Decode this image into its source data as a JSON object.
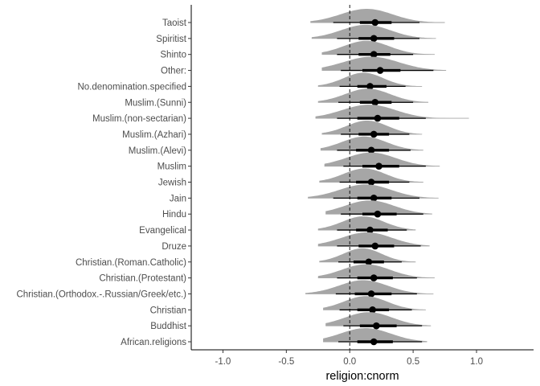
{
  "chart_data": {
    "type": "interval",
    "xlabel": "religion:cnorm",
    "ylabel": "",
    "xlim": [
      -1.25,
      1.45
    ],
    "xticks": [
      -1.0,
      -0.5,
      0.0,
      0.5,
      1.0
    ],
    "xtick_labels": [
      "-1.0",
      "-0.5",
      "0.0",
      "0.5",
      "1.0"
    ],
    "reference_line": 0,
    "grid": false,
    "colors": {
      "density": "#a6a6a6",
      "point": "#000000",
      "interval": "#000000",
      "axis": "#000000"
    },
    "categories": [
      "Taoist",
      "Spiritist",
      "Shinto",
      "Other:",
      "No.denomination.specified",
      "Muslim.(Sunni)",
      "Muslim.(non-sectarian)",
      "Muslim.(Azhari)",
      "Muslim.(Alevi)",
      "Muslim",
      "Jewish",
      "Jain",
      "Hindu",
      "Evangelical",
      "Druze",
      "Christian.(Roman.Catholic)",
      "Christian.(Protestant)",
      "Christian.(Orthodox.-.Russian/Greek/etc.)",
      "Christian",
      "Buddhist",
      "African.religions"
    ],
    "estimates": [
      {
        "label": "Taoist",
        "median": 0.2,
        "ci66": [
          0.08,
          0.33
        ],
        "ci95": [
          -0.13,
          0.55
        ],
        "range": [
          -0.31,
          0.75
        ]
      },
      {
        "label": "Spiritist",
        "median": 0.19,
        "ci66": [
          0.07,
          0.35
        ],
        "ci95": [
          -0.1,
          0.55
        ],
        "range": [
          -0.3,
          0.68
        ]
      },
      {
        "label": "Shinto",
        "median": 0.19,
        "ci66": [
          0.07,
          0.32
        ],
        "ci95": [
          -0.1,
          0.5
        ],
        "range": [
          -0.22,
          0.67
        ]
      },
      {
        "label": "Other:",
        "median": 0.24,
        "ci66": [
          0.1,
          0.4
        ],
        "ci95": [
          -0.07,
          0.66
        ],
        "range": [
          -0.22,
          0.76
        ]
      },
      {
        "label": "No.denomination.specified",
        "median": 0.16,
        "ci66": [
          0.06,
          0.29
        ],
        "ci95": [
          -0.08,
          0.44
        ],
        "range": [
          -0.25,
          0.57
        ]
      },
      {
        "label": "Muslim.(Sunni)",
        "median": 0.2,
        "ci66": [
          0.08,
          0.33
        ],
        "ci95": [
          -0.09,
          0.5
        ],
        "range": [
          -0.25,
          0.62
        ]
      },
      {
        "label": "Muslim.(non-sectarian)",
        "median": 0.22,
        "ci66": [
          0.06,
          0.39
        ],
        "ci95": [
          -0.1,
          0.6
        ],
        "range": [
          -0.27,
          0.94
        ]
      },
      {
        "label": "Muslim.(Azhari)",
        "median": 0.19,
        "ci66": [
          0.07,
          0.31
        ],
        "ci95": [
          -0.07,
          0.47
        ],
        "range": [
          -0.22,
          0.57
        ]
      },
      {
        "label": "Muslim.(Alevi)",
        "median": 0.17,
        "ci66": [
          0.05,
          0.31
        ],
        "ci95": [
          -0.1,
          0.48
        ],
        "range": [
          -0.23,
          0.58
        ]
      },
      {
        "label": "Muslim",
        "median": 0.23,
        "ci66": [
          0.1,
          0.39
        ],
        "ci95": [
          -0.05,
          0.6
        ],
        "range": [
          -0.2,
          0.71
        ]
      },
      {
        "label": "Jewish",
        "median": 0.17,
        "ci66": [
          0.05,
          0.31
        ],
        "ci95": [
          -0.08,
          0.47
        ],
        "range": [
          -0.24,
          0.58
        ]
      },
      {
        "label": "Jain",
        "median": 0.19,
        "ci66": [
          0.06,
          0.33
        ],
        "ci95": [
          -0.13,
          0.55
        ],
        "range": [
          -0.33,
          0.7
        ]
      },
      {
        "label": "Hindu",
        "median": 0.22,
        "ci66": [
          0.1,
          0.37
        ],
        "ci95": [
          -0.07,
          0.58
        ],
        "range": [
          -0.19,
          0.65
        ]
      },
      {
        "label": "Evangelical",
        "median": 0.16,
        "ci66": [
          0.05,
          0.3
        ],
        "ci95": [
          -0.1,
          0.45
        ],
        "range": [
          -0.25,
          0.52
        ]
      },
      {
        "label": "Druze",
        "median": 0.2,
        "ci66": [
          0.07,
          0.35
        ],
        "ci95": [
          -0.1,
          0.56
        ],
        "range": [
          -0.25,
          0.63
        ]
      },
      {
        "label": "Christian.(Roman.Catholic)",
        "median": 0.15,
        "ci66": [
          0.03,
          0.27
        ],
        "ci95": [
          -0.09,
          0.41
        ],
        "range": [
          -0.24,
          0.52
        ]
      },
      {
        "label": "Christian.(Protestant)",
        "median": 0.19,
        "ci66": [
          0.06,
          0.34
        ],
        "ci95": [
          -0.1,
          0.53
        ],
        "range": [
          -0.25,
          0.67
        ]
      },
      {
        "label": "Christian.(Orthodox.-.Russian/Greek/etc.)",
        "median": 0.17,
        "ci66": [
          0.04,
          0.33
        ],
        "ci95": [
          -0.11,
          0.53
        ],
        "range": [
          -0.35,
          0.66
        ]
      },
      {
        "label": "Christian",
        "median": 0.18,
        "ci66": [
          0.06,
          0.31
        ],
        "ci95": [
          -0.08,
          0.49
        ],
        "range": [
          -0.21,
          0.6
        ]
      },
      {
        "label": "Buddhist",
        "median": 0.21,
        "ci66": [
          0.08,
          0.37
        ],
        "ci95": [
          -0.05,
          0.57
        ],
        "range": [
          -0.19,
          0.64
        ]
      },
      {
        "label": "African.religions",
        "median": 0.19,
        "ci66": [
          0.06,
          0.34
        ],
        "ci95": [
          -0.09,
          0.57
        ],
        "range": [
          -0.21,
          0.61
        ]
      }
    ]
  }
}
